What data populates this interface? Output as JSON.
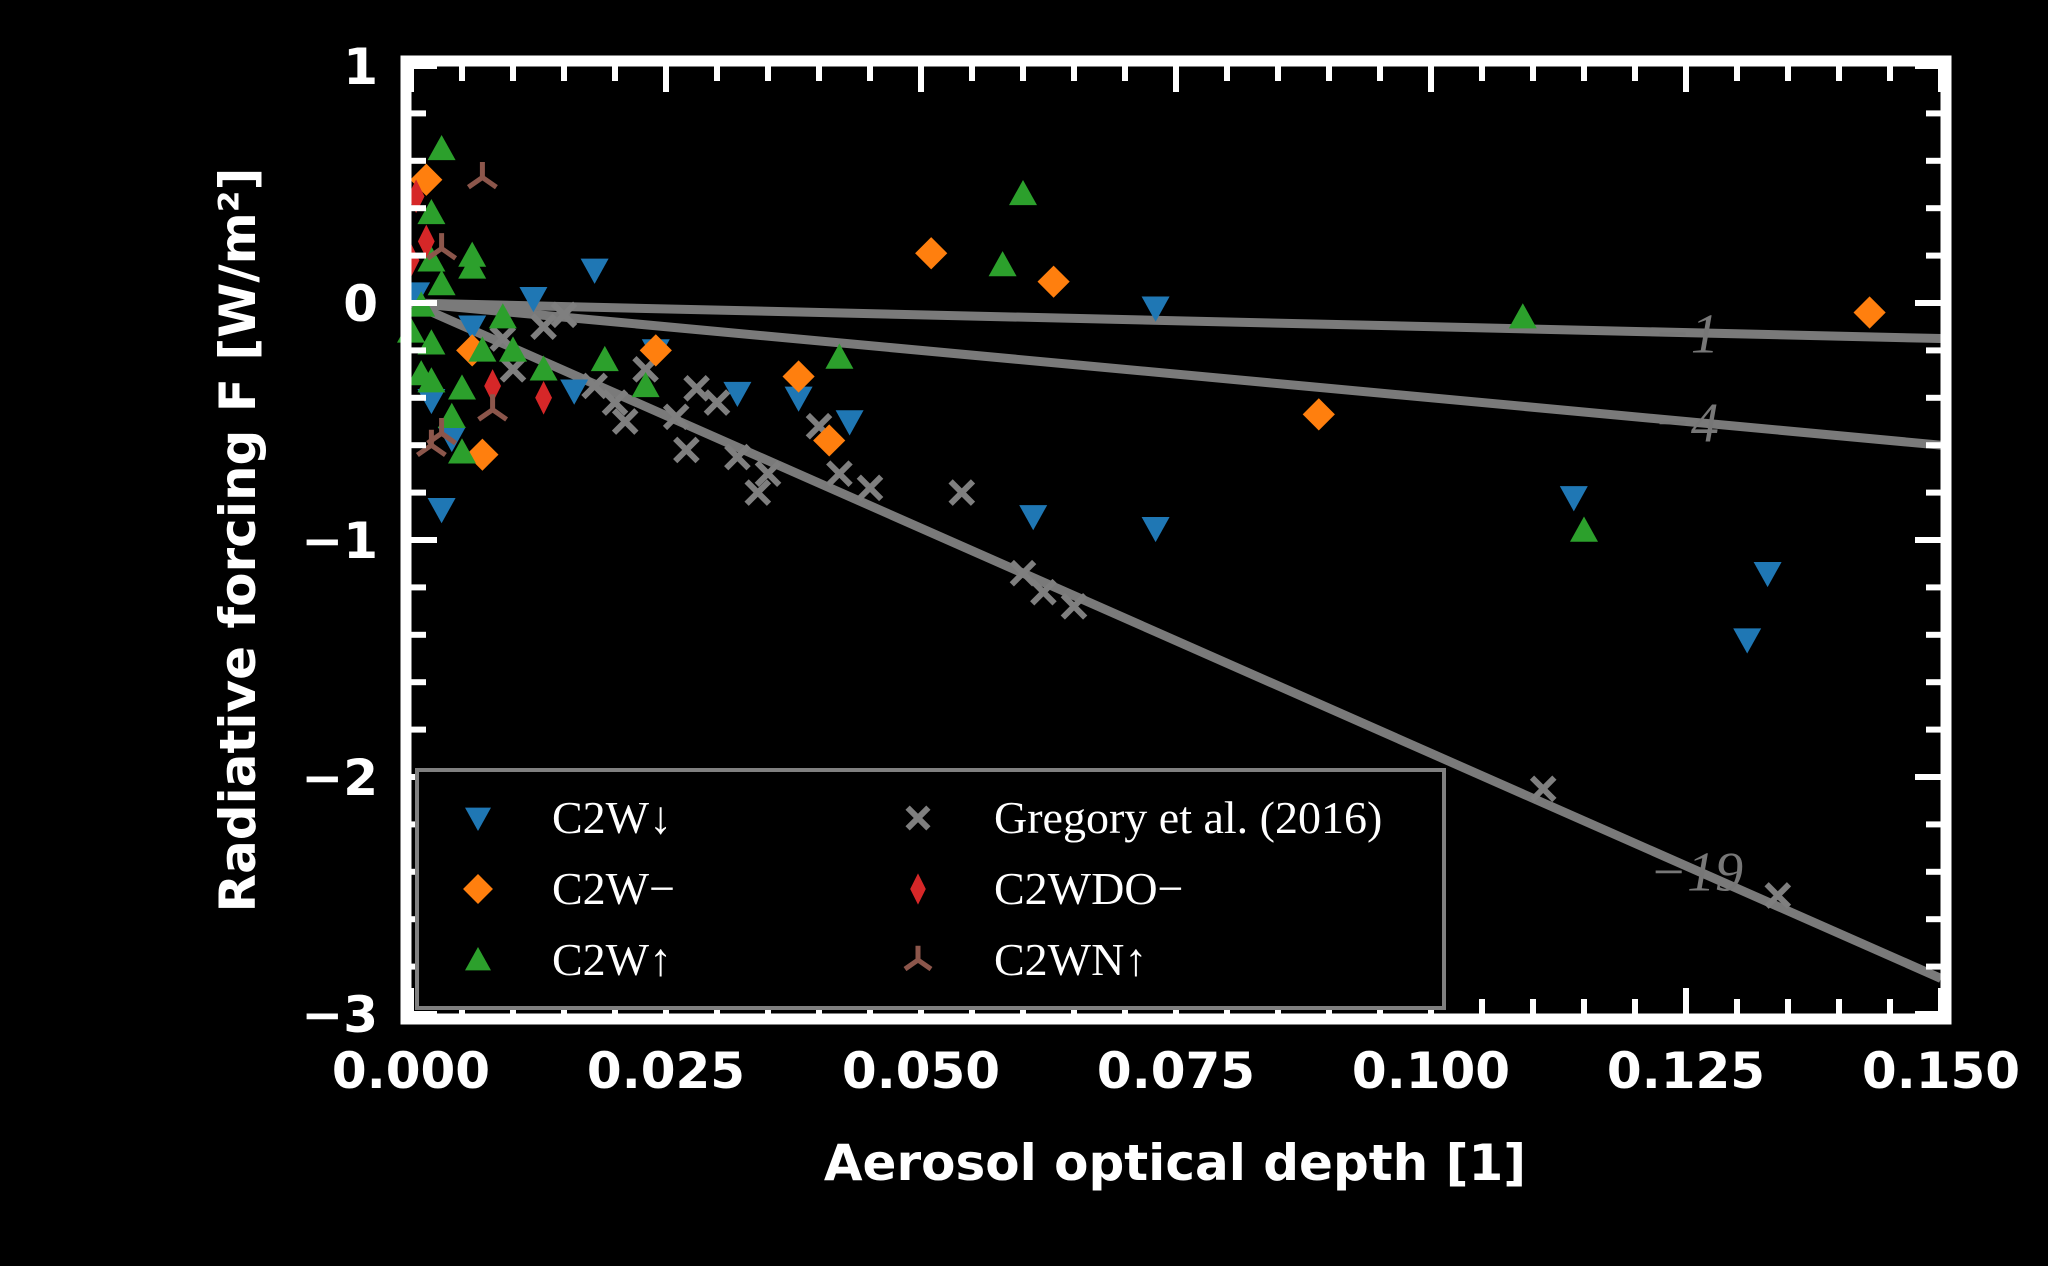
{
  "chart_data": {
    "type": "scatter",
    "xlabel": "Aerosol optical depth [1]",
    "ylabel": "Radiative forcing F [W/m²]",
    "xlim": [
      0.0,
      0.15
    ],
    "ylim": [
      -3,
      1
    ],
    "xticks": [
      "0.000",
      "0.025",
      "0.050",
      "0.075",
      "0.100",
      "0.125",
      "0.150"
    ],
    "yticks": [
      "1",
      "0",
      "−1",
      "−2",
      "−3"
    ],
    "reference_lines": [
      {
        "label": "−1",
        "slope": -1,
        "label_x": 0.125
      },
      {
        "label": "−4",
        "slope": -4,
        "label_x": 0.125
      },
      {
        "label": "−19",
        "slope": -19,
        "label_x": 0.126
      }
    ],
    "series": [
      {
        "name": "C2W↓",
        "marker": "triangle-down",
        "color": "#1f77b4",
        "points": [
          [
            0.0005,
            0.04
          ],
          [
            0.003,
            -0.87
          ],
          [
            0.002,
            -0.41
          ],
          [
            0.004,
            -0.57
          ],
          [
            0.006,
            -0.1
          ],
          [
            0.012,
            0.02
          ],
          [
            0.018,
            0.14
          ],
          [
            0.016,
            -0.37
          ],
          [
            0.024,
            -0.2
          ],
          [
            0.032,
            -0.38
          ],
          [
            0.038,
            -0.4
          ],
          [
            0.043,
            -0.5
          ],
          [
            0.073,
            -0.02
          ],
          [
            0.061,
            -0.9
          ],
          [
            0.073,
            -0.95
          ],
          [
            0.114,
            -0.82
          ],
          [
            0.131,
            -1.42
          ],
          [
            0.133,
            -1.14
          ]
        ]
      },
      {
        "name": "C2W−",
        "marker": "diamond",
        "color": "#ff7f0e",
        "points": [
          [
            0.0015,
            0.52
          ],
          [
            0.006,
            -0.2
          ],
          [
            0.007,
            -0.64
          ],
          [
            0.024,
            -0.2
          ],
          [
            0.038,
            -0.31
          ],
          [
            0.041,
            -0.58
          ],
          [
            0.051,
            0.21
          ],
          [
            0.063,
            0.09
          ],
          [
            0.089,
            -0.47
          ],
          [
            0.143,
            -0.04
          ]
        ]
      },
      {
        "name": "C2W↑",
        "marker": "triangle-up",
        "color": "#2ca02c",
        "points": [
          [
            0.0,
            -0.12
          ],
          [
            0.001,
            -0.3
          ],
          [
            0.001,
            -0.01
          ],
          [
            0.002,
            0.18
          ],
          [
            0.002,
            0.38
          ],
          [
            0.003,
            0.65
          ],
          [
            0.003,
            0.08
          ],
          [
            0.002,
            -0.17
          ],
          [
            0.002,
            -0.33
          ],
          [
            0.004,
            -0.48
          ],
          [
            0.005,
            -0.36
          ],
          [
            0.005,
            -0.63
          ],
          [
            0.006,
            0.2
          ],
          [
            0.006,
            0.15
          ],
          [
            0.007,
            -0.2
          ],
          [
            0.009,
            -0.06
          ],
          [
            0.01,
            -0.2
          ],
          [
            0.013,
            -0.28
          ],
          [
            0.019,
            -0.24
          ],
          [
            0.023,
            -0.35
          ],
          [
            0.042,
            -0.23
          ],
          [
            0.058,
            0.16
          ],
          [
            0.06,
            0.46
          ],
          [
            0.109,
            -0.06
          ],
          [
            0.115,
            -0.96
          ]
        ]
      },
      {
        "name": "Gregory et al. (2016)",
        "marker": "x",
        "color": "#7f7f7f",
        "points": [
          [
            0.009,
            -0.15
          ],
          [
            0.01,
            -0.28
          ],
          [
            0.013,
            -0.1
          ],
          [
            0.015,
            -0.05
          ],
          [
            0.018,
            -0.35
          ],
          [
            0.02,
            -0.42
          ],
          [
            0.021,
            -0.5
          ],
          [
            0.023,
            -0.28
          ],
          [
            0.026,
            -0.48
          ],
          [
            0.027,
            -0.62
          ],
          [
            0.028,
            -0.36
          ],
          [
            0.03,
            -0.42
          ],
          [
            0.032,
            -0.65
          ],
          [
            0.034,
            -0.8
          ],
          [
            0.035,
            -0.72
          ],
          [
            0.04,
            -0.52
          ],
          [
            0.042,
            -0.72
          ],
          [
            0.045,
            -0.78
          ],
          [
            0.054,
            -0.8
          ],
          [
            0.06,
            -1.14
          ],
          [
            0.062,
            -1.22
          ],
          [
            0.065,
            -1.28
          ],
          [
            0.111,
            -2.05
          ],
          [
            0.134,
            -2.5
          ]
        ]
      },
      {
        "name": "C2WDO−",
        "marker": "thin-diamond",
        "color": "#d62728",
        "points": [
          [
            0.0,
            0.18
          ],
          [
            0.0005,
            0.45
          ],
          [
            0.0015,
            0.26
          ],
          [
            0.008,
            -0.35
          ],
          [
            0.013,
            -0.4
          ]
        ]
      },
      {
        "name": "C2WN↑",
        "marker": "tri-down",
        "color": "#8c564b",
        "points": [
          [
            0.007,
            0.53
          ],
          [
            0.003,
            0.23
          ],
          [
            0.002,
            -0.6
          ],
          [
            0.003,
            -0.55
          ],
          [
            0.008,
            -0.45
          ]
        ]
      }
    ]
  }
}
